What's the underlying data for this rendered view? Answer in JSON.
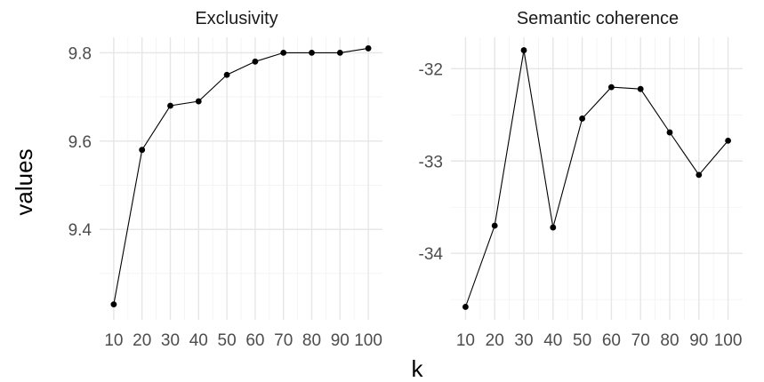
{
  "chart_data": {
    "type": "line",
    "xlabel": "k",
    "ylabel": "values",
    "grid": true,
    "facets": [
      {
        "title": "Exclusivity",
        "x": [
          10,
          20,
          30,
          40,
          50,
          60,
          70,
          80,
          90,
          100
        ],
        "y": [
          9.23,
          9.58,
          9.68,
          9.69,
          9.75,
          9.78,
          9.8,
          9.8,
          9.8,
          9.81
        ],
        "xlim": [
          5,
          105
        ],
        "ylim": [
          9.195,
          9.835
        ],
        "yticks": [
          9.4,
          9.6,
          9.8
        ],
        "ytick_labels": [
          "9.4",
          "9.6",
          "9.8"
        ],
        "xticks": [
          10,
          20,
          30,
          40,
          50,
          60,
          70,
          80,
          90,
          100
        ],
        "xtick_labels": [
          "10",
          "20",
          "30",
          "40",
          "50",
          "60",
          "70",
          "80",
          "90",
          "100"
        ]
      },
      {
        "title": "Semantic coherence",
        "x": [
          10,
          20,
          30,
          40,
          50,
          60,
          70,
          80,
          90,
          100
        ],
        "y": [
          -34.58,
          -33.7,
          -31.8,
          -33.72,
          -32.54,
          -32.2,
          -32.22,
          -32.69,
          -33.15,
          -32.78
        ],
        "xlim": [
          5,
          105
        ],
        "ylim": [
          -34.72,
          -31.66
        ],
        "yticks": [
          -34,
          -33,
          -32
        ],
        "ytick_labels": [
          "-34",
          "-33",
          "-32"
        ],
        "xticks": [
          10,
          20,
          30,
          40,
          50,
          60,
          70,
          80,
          90,
          100
        ],
        "xtick_labels": [
          "10",
          "20",
          "30",
          "40",
          "50",
          "60",
          "70",
          "80",
          "90",
          "100"
        ]
      }
    ]
  }
}
